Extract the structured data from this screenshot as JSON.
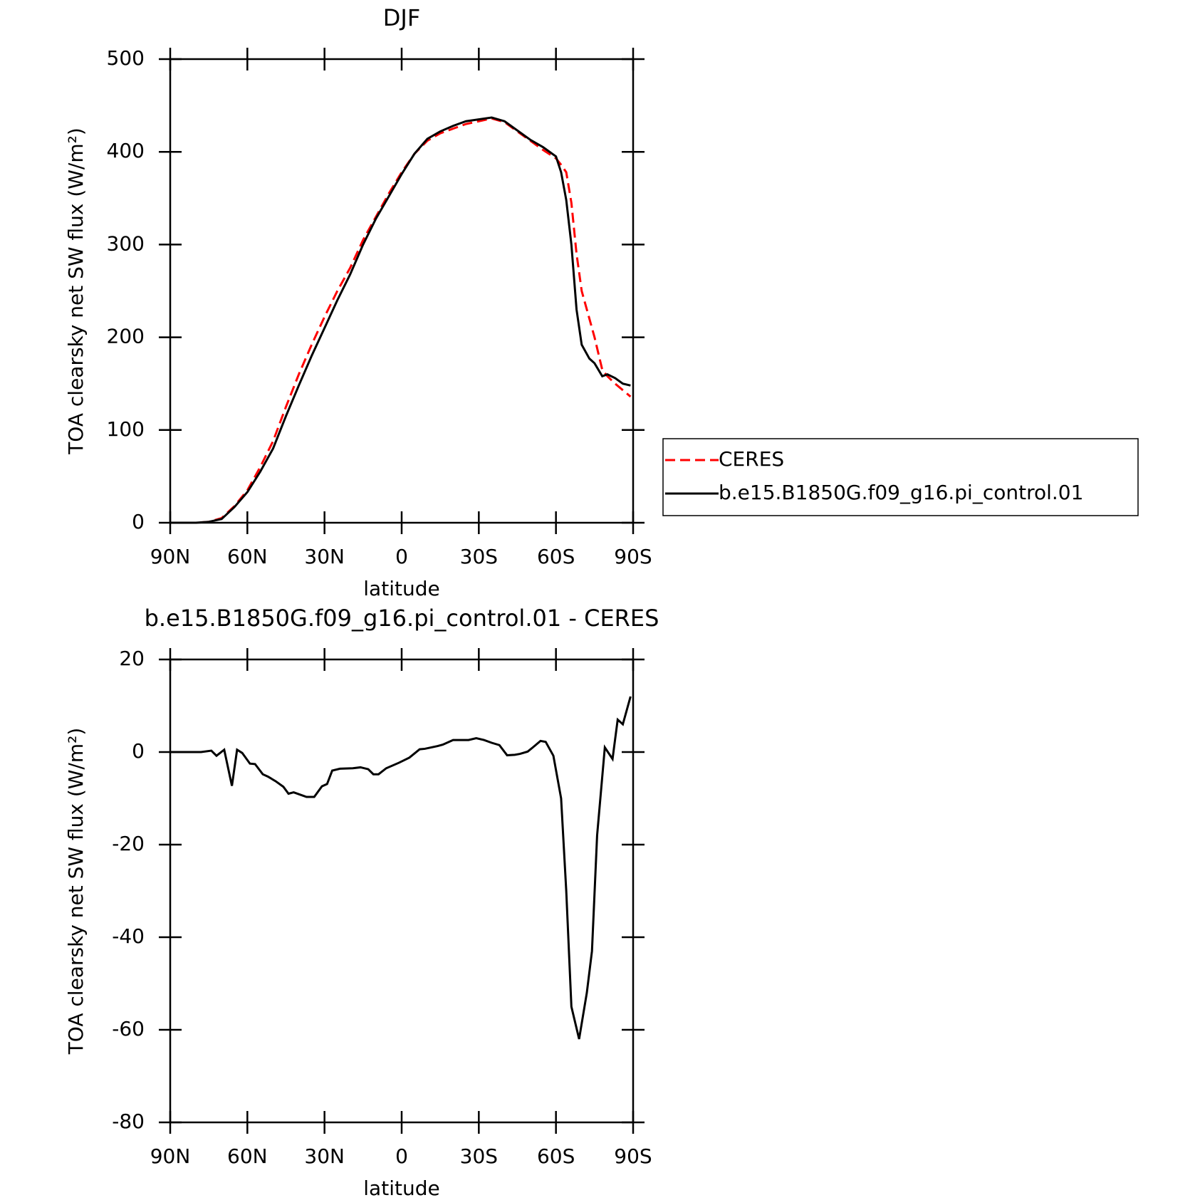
{
  "chart_data": [
    {
      "type": "line",
      "title": "DJF",
      "xlabel": "latitude",
      "ylabel": "TOA clearsky net SW flux (W/m²)",
      "x": [
        90,
        80,
        75,
        70,
        65,
        60,
        55,
        50,
        45,
        40,
        35,
        30,
        25,
        20,
        15,
        10,
        5,
        0,
        -5,
        -10,
        -15,
        -20,
        -25,
        -30,
        -35,
        -40,
        -45,
        -50,
        -55,
        -60,
        -62,
        -64,
        -66,
        -68,
        -70,
        -73,
        -75,
        -78,
        -80,
        -83,
        -86,
        -89
      ],
      "series": [
        {
          "name": "CERES",
          "color": "#ff0000",
          "style": "dashed",
          "values": [
            0,
            0,
            1,
            5,
            18,
            35,
            60,
            88,
            125,
            160,
            192,
            222,
            250,
            275,
            305,
            330,
            355,
            378,
            398,
            412,
            420,
            425,
            430,
            433,
            436,
            432,
            422,
            412,
            402,
            393,
            386,
            378,
            345,
            290,
            250,
            220,
            200,
            165,
            158,
            150,
            143,
            136
          ]
        },
        {
          "name": "b.e15.B1850G.f09_g16.pi_control.01",
          "color": "#000000",
          "style": "solid",
          "values": [
            0,
            0,
            1,
            4,
            17,
            33,
            55,
            80,
            115,
            148,
            180,
            210,
            240,
            268,
            300,
            328,
            352,
            376,
            398,
            414,
            422,
            428,
            433,
            435,
            437,
            433,
            423,
            413,
            405,
            395,
            378,
            348,
            300,
            230,
            192,
            177,
            172,
            158,
            160,
            156,
            150,
            148
          ]
        }
      ],
      "xlim": [
        90,
        -90
      ],
      "xticks": [
        {
          "value": 90,
          "label": "90N"
        },
        {
          "value": 60,
          "label": "60N"
        },
        {
          "value": 30,
          "label": "30N"
        },
        0,
        {
          "value": -30,
          "label": "30S"
        },
        {
          "value": -60,
          "label": "60S"
        },
        {
          "value": -90,
          "label": "90S"
        }
      ],
      "ylim": [
        0,
        500
      ],
      "yticks": [
        0,
        100,
        200,
        300,
        400,
        500
      ],
      "legend": "right"
    },
    {
      "type": "line",
      "title": "b.e15.B1850G.f09_g16.pi_control.01 - CERES",
      "xlabel": "latitude",
      "ylabel": "TOA clearsky net SW flux (W/m²)",
      "x": [
        90,
        78,
        74,
        72,
        69,
        66,
        64,
        62,
        59,
        57,
        54,
        52,
        49,
        46,
        44,
        42,
        39,
        37,
        34,
        31,
        29,
        27,
        24,
        19,
        16,
        13,
        11,
        9,
        6,
        1,
        -3,
        -7,
        -9,
        -14,
        -16,
        -20,
        -26,
        -29,
        -32,
        -35,
        -38,
        -41,
        -44,
        -46,
        -49,
        -51,
        -54,
        -56,
        -59,
        -62,
        -64,
        -66,
        -69,
        -72,
        -74,
        -76,
        -79,
        -82,
        -84,
        -86,
        -89
      ],
      "series": [
        {
          "color": "#000000",
          "style": "solid",
          "values": [
            0,
            0,
            0.3,
            -0.8,
            0.5,
            -7.3,
            0.5,
            -0.2,
            -2.5,
            -2.6,
            -4.8,
            -5.3,
            -6.3,
            -7.5,
            -9,
            -8.7,
            -9.3,
            -9.7,
            -9.7,
            -7.4,
            -6.9,
            -4,
            -3.6,
            -3.5,
            -3.3,
            -3.7,
            -4.8,
            -4.8,
            -3.5,
            -2.3,
            -1.2,
            0.6,
            0.7,
            1.3,
            1.6,
            2.6,
            2.6,
            3,
            2.6,
            2,
            1.5,
            -0.7,
            -0.6,
            -0.4,
            0.1,
            1,
            2.4,
            2.2,
            -0.8,
            -10,
            -30,
            -55,
            -62,
            -52,
            -43,
            -18,
            1,
            -1.5,
            7,
            6,
            12
          ]
        }
      ],
      "xlim": [
        90,
        -90
      ],
      "xticks": [
        {
          "value": 90,
          "label": "90N"
        },
        {
          "value": 60,
          "label": "60N"
        },
        {
          "value": 30,
          "label": "30N"
        },
        0,
        {
          "value": -30,
          "label": "30S"
        },
        {
          "value": -60,
          "label": "60S"
        },
        {
          "value": -90,
          "label": "90S"
        }
      ],
      "ylim": [
        -80,
        20
      ],
      "yticks": [
        -80,
        -60,
        -40,
        -20,
        0,
        20
      ]
    }
  ]
}
